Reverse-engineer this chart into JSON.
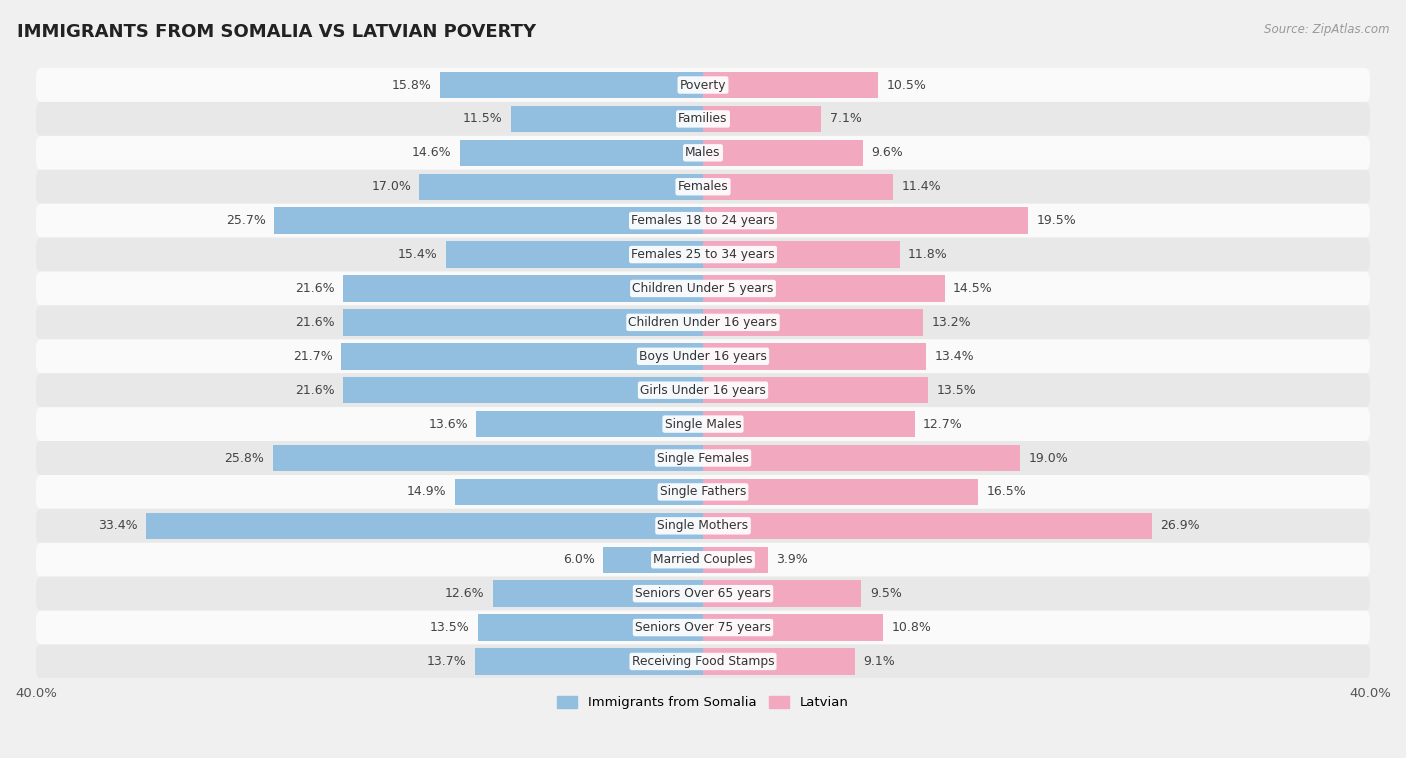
{
  "title": "IMMIGRANTS FROM SOMALIA VS LATVIAN POVERTY",
  "source": "Source: ZipAtlas.com",
  "categories": [
    "Poverty",
    "Families",
    "Males",
    "Females",
    "Females 18 to 24 years",
    "Females 25 to 34 years",
    "Children Under 5 years",
    "Children Under 16 years",
    "Boys Under 16 years",
    "Girls Under 16 years",
    "Single Males",
    "Single Females",
    "Single Fathers",
    "Single Mothers",
    "Married Couples",
    "Seniors Over 65 years",
    "Seniors Over 75 years",
    "Receiving Food Stamps"
  ],
  "somalia_values": [
    15.8,
    11.5,
    14.6,
    17.0,
    25.7,
    15.4,
    21.6,
    21.6,
    21.7,
    21.6,
    13.6,
    25.8,
    14.9,
    33.4,
    6.0,
    12.6,
    13.5,
    13.7
  ],
  "latvian_values": [
    10.5,
    7.1,
    9.6,
    11.4,
    19.5,
    11.8,
    14.5,
    13.2,
    13.4,
    13.5,
    12.7,
    19.0,
    16.5,
    26.9,
    3.9,
    9.5,
    10.8,
    9.1
  ],
  "somalia_color": "#92bfdf",
  "latvian_color": "#f2a8be",
  "background_color": "#f0f0f0",
  "row_bg_light": "#fafafa",
  "row_bg_dark": "#e8e8e8",
  "max_val": 40.0,
  "bar_height": 0.78,
  "label_fontsize": 9.0,
  "category_fontsize": 8.8,
  "title_fontsize": 13,
  "legend_somalia": "Immigrants from Somalia",
  "legend_latvian": "Latvian"
}
